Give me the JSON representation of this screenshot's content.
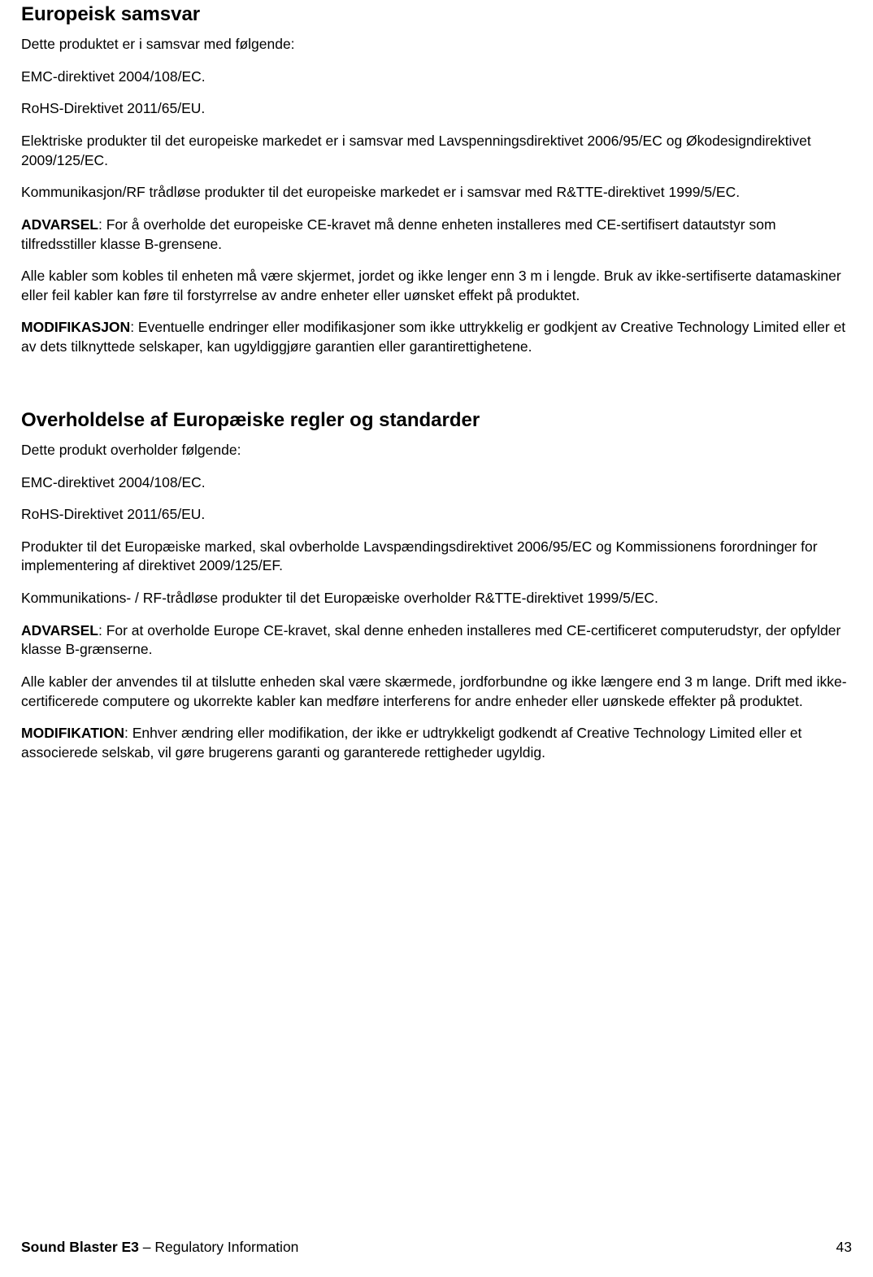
{
  "section1": {
    "heading": "Europeisk samsvar",
    "p1": "Dette produktet er i samsvar med følgende:",
    "p2": "EMC-direktivet 2004/108/EC.",
    "p3": "RoHS-Direktivet 2011/65/EU.",
    "p4": "Elektriske produkter til det europeiske markedet er i samsvar med Lavspenningsdirektivet 2006/95/EC og Økodesigndirektivet 2009/125/EC.",
    "p5": "Kommunikasjon/RF trådløse produkter til det europeiske markedet er i samsvar med R&TTE-direktivet 1999/5/EC.",
    "p6_label": "ADVARSEL",
    "p6_text": ": For å overholde det europeiske CE-kravet må denne enheten installeres med CE-sertifisert datautstyr som tilfredsstiller klasse B-grensene.",
    "p7": "Alle kabler som kobles til enheten må være skjermet, jordet og ikke lenger enn 3 m i lengde. Bruk av ikke-sertifiserte datamaskiner eller feil kabler kan føre til forstyrrelse av andre enheter eller uønsket effekt på produktet.",
    "p8_label": "MODIFIKASJON",
    "p8_text": ": Eventuelle endringer eller modifikasjoner som ikke uttrykkelig er godkjent av Creative Technology Limited eller et av dets tilknyttede selskaper, kan ugyldiggjøre garantien eller garantirettighetene."
  },
  "section2": {
    "heading": "Overholdelse af Europæiske regler og standarder",
    "p1": "Dette produkt overholder følgende:",
    "p2": "EMC-direktivet 2004/108/EC.",
    "p3": "RoHS-Direktivet 2011/65/EU.",
    "p4": "Produkter til det Europæiske marked, skal ovberholde Lavspændingsdirektivet 2006/95/EC og Kommissionens forordninger for implementering af direktivet 2009/125/EF.",
    "p5": "Kommunikations- / RF-trådløse produkter til det Europæiske overholder R&TTE-direktivet 1999/5/EC.",
    "p6_label": "ADVARSEL",
    "p6_text": ": For at overholde Europe CE-kravet, skal denne enheden installeres med CE-certificeret computerudstyr, der opfylder klasse B-grænserne.",
    "p7": "Alle kabler der anvendes til at tilslutte enheden skal være skærmede, jordforbundne og ikke længere end 3 m lange. Drift med ikke-certificerede computere og ukorrekte kabler kan medføre interferens for andre enheder eller uønskede effekter på produktet.",
    "p8_label": "MODIFIKATION",
    "p8_text": ": Enhver ændring eller modifikation, der ikke er udtrykkeligt godkendt af Creative Technology Limited eller et associerede selskab, vil gøre brugerens garanti og garanterede rettigheder ugyldig."
  },
  "footer": {
    "product": "Sound Blaster E3",
    "separator": " – ",
    "title": "Regulatory Information",
    "page": "43"
  }
}
